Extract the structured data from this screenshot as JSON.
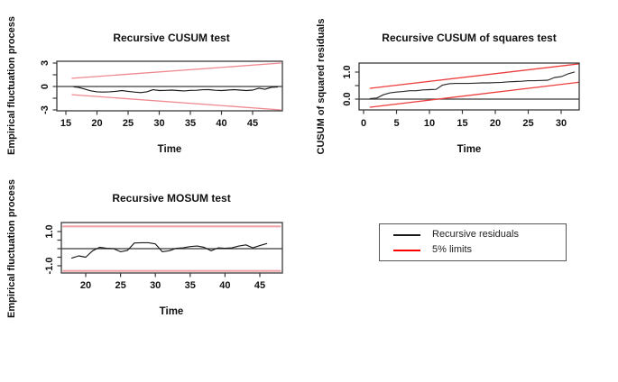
{
  "page": {
    "background": "#ffffff"
  },
  "legend": {
    "entries": [
      {
        "label": "Recursive residuals",
        "color": "#1a1a1a"
      },
      {
        "label": "5% limits",
        "color": "#ff0000"
      }
    ]
  },
  "chart_data": [
    {
      "type": "line",
      "title": "Recursive CUSUM test",
      "xlabel": "Time",
      "ylabel": "Empirical fluctuation process",
      "xlim": [
        13.6,
        49.8
      ],
      "ylim": [
        -3.2,
        3.25
      ],
      "grid": false,
      "x_ticks": [
        15,
        20,
        25,
        30,
        35,
        40,
        45
      ],
      "y_ticks": [
        {
          "v": 3,
          "label": "3"
        },
        {
          "v": 1.5,
          "label": ""
        },
        {
          "v": 0,
          "label": "0"
        },
        {
          "v": -1.5,
          "label": ""
        },
        {
          "v": -3,
          "label": "-3"
        }
      ],
      "zero_line": 0,
      "series": [
        {
          "name": "Recursive residuals",
          "color": "#1a1a1a",
          "points": [
            [
              16.3,
              -0.05
            ],
            [
              17,
              -0.1
            ],
            [
              18,
              -0.32
            ],
            [
              19,
              -0.55
            ],
            [
              20,
              -0.68
            ],
            [
              21,
              -0.72
            ],
            [
              22,
              -0.68
            ],
            [
              23,
              -0.62
            ],
            [
              24,
              -0.52
            ],
            [
              25,
              -0.62
            ],
            [
              26,
              -0.72
            ],
            [
              27,
              -0.78
            ],
            [
              28,
              -0.68
            ],
            [
              29,
              -0.42
            ],
            [
              30,
              -0.52
            ],
            [
              31,
              -0.5
            ],
            [
              32,
              -0.46
            ],
            [
              33,
              -0.52
            ],
            [
              34,
              -0.56
            ],
            [
              35,
              -0.5
            ],
            [
              36,
              -0.48
            ],
            [
              37,
              -0.42
            ],
            [
              38,
              -0.4
            ],
            [
              39,
              -0.48
            ],
            [
              40,
              -0.52
            ],
            [
              41,
              -0.46
            ],
            [
              42,
              -0.4
            ],
            [
              43,
              -0.46
            ],
            [
              44,
              -0.52
            ],
            [
              45,
              -0.46
            ],
            [
              46,
              -0.22
            ],
            [
              47,
              -0.36
            ],
            [
              48,
              -0.1
            ],
            [
              49,
              -0.06
            ]
          ]
        },
        {
          "name": "5% upper limit",
          "color": "#f0898f",
          "points": [
            [
              16,
              1.05
            ],
            [
              49.5,
              3.0
            ]
          ]
        },
        {
          "name": "5% lower limit",
          "color": "#f0898f",
          "points": [
            [
              16,
              -1.05
            ],
            [
              49.5,
              -3.0
            ]
          ]
        }
      ]
    },
    {
      "type": "line",
      "title": "Recursive CUSUM of squares test",
      "xlabel": "Time",
      "ylabel": "CUSUM of squared residuals",
      "xlim": [
        -0.7,
        32.7
      ],
      "ylim": [
        -0.4,
        1.33
      ],
      "grid": false,
      "x_ticks": [
        0,
        5,
        10,
        15,
        20,
        25,
        30
      ],
      "y_ticks": [
        {
          "v": 1.0,
          "label": "1.0"
        },
        {
          "v": 0.5,
          "label": ""
        },
        {
          "v": 0.0,
          "label": "0.0"
        }
      ],
      "zero_line": 0,
      "series": [
        {
          "name": "Recursive residuals",
          "color": "#2a2a2a",
          "points": [
            [
              1,
              0.02
            ],
            [
              2,
              0.04
            ],
            [
              3,
              0.16
            ],
            [
              4,
              0.23
            ],
            [
              5,
              0.26
            ],
            [
              6,
              0.28
            ],
            [
              7,
              0.31
            ],
            [
              8,
              0.31
            ],
            [
              9,
              0.34
            ],
            [
              10,
              0.35
            ],
            [
              11,
              0.36
            ],
            [
              12,
              0.52
            ],
            [
              13,
              0.57
            ],
            [
              14,
              0.58
            ],
            [
              15,
              0.58
            ],
            [
              16,
              0.58
            ],
            [
              17,
              0.59
            ],
            [
              18,
              0.6
            ],
            [
              19,
              0.6
            ],
            [
              20,
              0.61
            ],
            [
              21,
              0.62
            ],
            [
              22,
              0.64
            ],
            [
              23,
              0.65
            ],
            [
              24,
              0.66
            ],
            [
              25,
              0.68
            ],
            [
              26,
              0.68
            ],
            [
              27,
              0.69
            ],
            [
              28,
              0.7
            ],
            [
              29,
              0.8
            ],
            [
              30,
              0.83
            ],
            [
              31,
              0.93
            ],
            [
              32,
              1.0
            ]
          ]
        },
        {
          "name": "5% upper limit",
          "color": "#ee3f3f",
          "points": [
            [
              1,
              0.4
            ],
            [
              32.6,
              1.3
            ]
          ]
        },
        {
          "name": "5% lower limit",
          "color": "#ee3f3f",
          "points": [
            [
              1,
              -0.3
            ],
            [
              32.6,
              0.62
            ]
          ]
        }
      ]
    },
    {
      "type": "line",
      "title": "Recursive MOSUM test",
      "xlabel": "Time",
      "ylabel": "Empirical fluctuation process",
      "xlim": [
        16.5,
        48.2
      ],
      "ylim": [
        -1.35,
        1.45
      ],
      "grid": false,
      "x_ticks": [
        20,
        25,
        30,
        35,
        40,
        45
      ],
      "y_ticks": [
        {
          "v": 1.0,
          "label": "1.0"
        },
        {
          "v": 0.5,
          "label": ""
        },
        {
          "v": 0,
          "label": ""
        },
        {
          "v": -0.5,
          "label": ""
        },
        {
          "v": -1.0,
          "label": "-1.0"
        }
      ],
      "zero_line": 0,
      "series": [
        {
          "name": "Recursive residuals",
          "color": "#1a1a1a",
          "points": [
            [
              18,
              -0.55
            ],
            [
              19,
              -0.42
            ],
            [
              20,
              -0.5
            ],
            [
              21,
              -0.12
            ],
            [
              22,
              0.08
            ],
            [
              23,
              0.02
            ],
            [
              24,
              0.0
            ],
            [
              25,
              -0.18
            ],
            [
              26,
              -0.1
            ],
            [
              27,
              0.33
            ],
            [
              28,
              0.35
            ],
            [
              29,
              0.35
            ],
            [
              30,
              0.28
            ],
            [
              31,
              -0.18
            ],
            [
              32,
              -0.12
            ],
            [
              33,
              0.02
            ],
            [
              34,
              0.05
            ],
            [
              35,
              0.12
            ],
            [
              36,
              0.15
            ],
            [
              37,
              0.08
            ],
            [
              38,
              -0.12
            ],
            [
              39,
              0.05
            ],
            [
              40,
              0.02
            ],
            [
              41,
              0.05
            ],
            [
              42,
              0.15
            ],
            [
              43,
              0.22
            ],
            [
              44,
              0.05
            ],
            [
              45,
              0.18
            ],
            [
              46,
              0.3
            ]
          ]
        },
        {
          "name": "5% upper limit",
          "color": "#eda3a9",
          "points": [
            [
              16.8,
              1.3
            ],
            [
              47.9,
              1.3
            ]
          ]
        },
        {
          "name": "5% lower limit",
          "color": "#eda3a9",
          "points": [
            [
              16.8,
              -1.3
            ],
            [
              47.9,
              -1.3
            ]
          ]
        }
      ]
    }
  ]
}
